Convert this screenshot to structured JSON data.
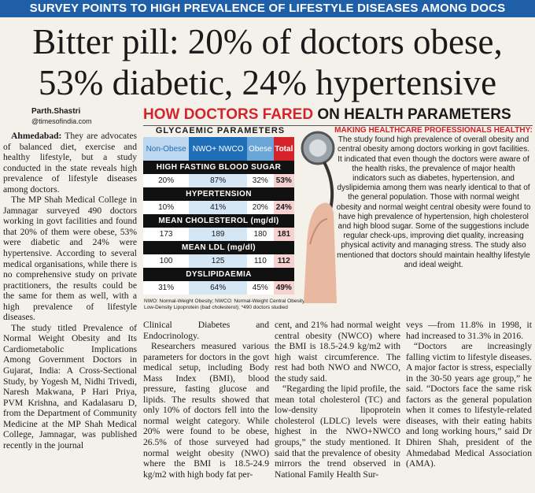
{
  "kicker": "SURVEY POINTS TO HIGH PREVALENCE OF LIFESTYLE DISEASES AMONG DOCS",
  "headline": [
    "Bitter pill: 20% of doctors obese,",
    "53% diabetic, 24% hypertensive"
  ],
  "byline": {
    "name": "Parth.Shastri",
    "source": "@timesofindia.com"
  },
  "infographic": {
    "title_red": "HOW DOCTORS FARED",
    "title_black": "ON HEALTH PARAMETERS",
    "table_title": "GLYCAEMIC PARAMETERS",
    "headers": [
      "Non-Obese",
      "NWO+ NWCO",
      "Obese",
      "Total"
    ],
    "sections": [
      {
        "heading": "HIGH FASTING BLOOD SUGAR",
        "values": [
          "20%",
          "87%",
          "32%",
          "53%"
        ]
      },
      {
        "heading": "HYPERTENSION",
        "values": [
          "10%",
          "41%",
          "20%",
          "24%"
        ]
      },
      {
        "heading": "MEAN CHOLESTEROL (mg/dl)",
        "values": [
          "173",
          "189",
          "180",
          "181"
        ]
      },
      {
        "heading": "MEAN LDL (mg/dl)",
        "values": [
          "100",
          "125",
          "110",
          "112"
        ]
      },
      {
        "heading": "DYSLIPIDAEMIA",
        "values": [
          "31%",
          "64%",
          "45%",
          "49%"
        ]
      }
    ],
    "footnote": "NWO: Normal-Weight Obesity; NWCO: Normal-Weight Central Obesity; LDL: Low-Density Lipoprotein (bad cholesterol); *490 doctors studied",
    "sidebar_heading": "MAKING HEALTHCARE PROFESSIONALS HEALTHY:",
    "sidebar_text": "The study found high prevalence of overall obesity and central obesity among doctors working in govt facilities. It indicated that even though the doctors were aware of the health risks, the prevalence of major health indicators such as diabetes, hypertension, and dyslipidemia among them was nearly identical to that of the general population. Those with normal weight obesity and normal weight central obesity were found to have high prevalence of hypertension, high cholesterol and high blood sugar. Some of the suggestions include regular check-ups, improving diet quality, increasing physical activity and managing stress. The study also mentioned that doctors should maintain healthy lifestyle and ideal weight."
  },
  "columns": [
    [
      {
        "lead": "Ahmedabad:",
        "text": "They are advocates of balanced diet, exercise and healthy lifestyle, but a study conducted in the state reveals high prevalence of lifestyle diseases among doctors."
      },
      {
        "text": "The MP Shah Medical College in Jamnagar surveyed 490 doctors working in govt facilities and found that 20% of them were obese, 53% were diabetic and 24% were hypertensive. According to several medical organisations, while there is no comprehensive study on private practitioners, the results could be the same for them as well, with a high prevalence of lifestyle diseases."
      },
      {
        "text": "The study titled Prevalence of Normal Weight Obesity and Its Cardiometabolic Implications Among Government Doctors in Gujarat, India: A Cross-Sectional Study, by Yogesh M, Nidhi Trivedi, Naresh Makwana, P Hari Priya, PVM Krishna, and Kadalasaru D, from the Department of Community Medicine at the MP Shah Medical College, Jamnagar, was published recently in the journal"
      }
    ],
    [
      {
        "text": "Clinical Diabetes and Endocrinology."
      },
      {
        "text": "Researchers measured various parameters for doctors in the govt medical setup, including Body Mass Index (BMI), blood pressure, fasting glucose and lipids. The results showed that only 10% of doctors fell into the normal weight category. While 20% were found to be obese, 26.5% of those surveyed had normal weight obesity (NWO) where the BMI is 18.5-24.9 kg/m2 with high body fat per-"
      }
    ],
    [
      {
        "text": "cent, and 21% had normal weight central obesity (NWCO) where the BMI is 18.5-24.9 kg/m2 with high waist circumference. The rest had both NWO and NWCO, the study said."
      },
      {
        "text": "“Regarding the lipid profile, the mean total cholesterol (TC) and low-density lipoprotein cholesterol (LDLC) levels were highest in the NWO+NWCO groups,” the study mentioned. It said that the prevalence of obesity mirrors the trend observed in National Family Health Sur-"
      }
    ],
    [
      {
        "text": "veys —from 11.8% in 1998, it had increased to 31.3% in 2016."
      },
      {
        "text": "“Doctors are increasingly falling victim to lifestyle diseases. A major factor is stress, especially in the 30-50 years age group,” he said. “Doctors face the same risk factors as the general population when it comes to lifestyle-related diseases, with their eating habits and long working hours,” said Dr Dhiren Shah, president of the Ahmedabad Medical Association (AMA)."
      }
    ]
  ]
}
